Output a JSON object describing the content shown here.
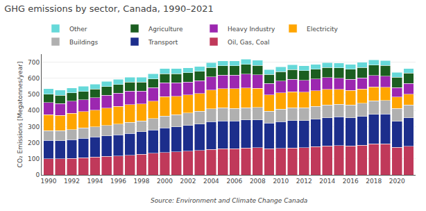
{
  "chart_data": {
    "type": "bar",
    "stacked": true,
    "title": "GHG emissions by sector, Canada, 1990–2021",
    "y_label": "CO₂ Emissions [Megatonnes/year]",
    "annotations": [
      "Source: Environment and Climate Change Canada"
    ],
    "x": [
      1990,
      1991,
      1992,
      1993,
      1994,
      1995,
      1996,
      1997,
      1998,
      1999,
      2000,
      2001,
      2002,
      2003,
      2004,
      2005,
      2006,
      2007,
      2008,
      2009,
      2010,
      2011,
      2012,
      2013,
      2014,
      2015,
      2016,
      2017,
      2018,
      2019,
      2020,
      2021
    ],
    "series": [
      {
        "name": "Oil, Gas, Coal",
        "color": "#c0395a",
        "values": [
          100,
          100,
          103,
          107,
          112,
          115,
          118,
          122,
          128,
          135,
          140,
          143,
          148,
          152,
          158,
          162,
          162,
          168,
          170,
          162,
          165,
          168,
          170,
          175,
          180,
          183,
          180,
          185,
          192,
          193,
          172,
          178
        ]
      },
      {
        "name": "Transport",
        "color": "#1c2e8c",
        "values": [
          115,
          113,
          116,
          120,
          124,
          128,
          130,
          136,
          140,
          145,
          153,
          156,
          160,
          164,
          172,
          174,
          173,
          174,
          172,
          160,
          166,
          170,
          168,
          172,
          174,
          177,
          175,
          179,
          184,
          185,
          162,
          177
        ]
      },
      {
        "name": "Buildings",
        "color": "#b0b0b0",
        "values": [
          60,
          62,
          63,
          64,
          62,
          64,
          67,
          68,
          68,
          70,
          72,
          75,
          77,
          80,
          80,
          80,
          78,
          76,
          78,
          73,
          77,
          79,
          78,
          79,
          80,
          79,
          80,
          82,
          85,
          84,
          79,
          80
        ]
      },
      {
        "name": "Electricity",
        "color": "#ffa500",
        "values": [
          100,
          95,
          100,
          102,
          105,
          108,
          110,
          110,
          105,
          108,
          120,
          115,
          112,
          110,
          118,
          120,
          122,
          122,
          118,
          102,
          102,
          100,
          97,
          97,
          97,
          92,
          90,
          87,
          85,
          82,
          70,
          67
        ]
      },
      {
        "name": "Heavy Industry",
        "color": "#9c27b0",
        "values": [
          75,
          73,
          75,
          73,
          77,
          80,
          83,
          85,
          80,
          83,
          87,
          83,
          80,
          80,
          80,
          83,
          85,
          87,
          83,
          70,
          73,
          77,
          75,
          73,
          73,
          70,
          68,
          70,
          72,
          70,
          60,
          65
        ]
      },
      {
        "name": "Agriculture",
        "color": "#1b5e20",
        "values": [
          52,
          51,
          52,
          52,
          53,
          53,
          54,
          55,
          55,
          56,
          57,
          57,
          57,
          57,
          58,
          58,
          58,
          59,
          59,
          58,
          59,
          60,
          60,
          61,
          62,
          63,
          63,
          64,
          65,
          65,
          64,
          65
        ]
      },
      {
        "name": "Other",
        "color": "#66d9d9",
        "values": [
          33,
          32,
          31,
          32,
          31,
          32,
          32,
          31,
          31,
          32,
          32,
          31,
          31,
          31,
          31,
          32,
          31,
          32,
          32,
          29,
          30,
          30,
          30,
          30,
          31,
          31,
          31,
          32,
          32,
          32,
          29,
          29
        ]
      }
    ],
    "xlim": [
      1989.4,
      2021.6
    ],
    "xticks": [
      1990,
      1992,
      1994,
      1996,
      1998,
      2000,
      2002,
      2004,
      2006,
      2008,
      2010,
      2012,
      2014,
      2016,
      2018,
      2020
    ],
    "ylim": [
      0,
      750
    ],
    "yticks": [
      0,
      100,
      200,
      300,
      400,
      500,
      600,
      700
    ],
    "grid": true,
    "legend": "top"
  }
}
